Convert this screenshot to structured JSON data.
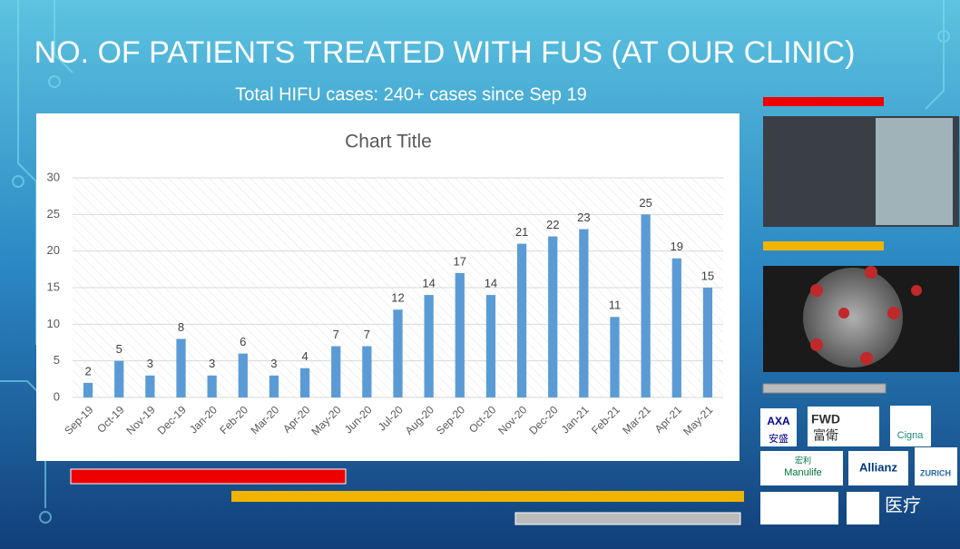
{
  "slide": {
    "title": "NO. OF PATIENTS TREATED WITH FUS (AT OUR CLINIC)",
    "subtitle": "Total HIFU cases: 240+ cases since Sep 19",
    "logos": [
      "AXA",
      "安盛",
      "FWD",
      "富衛",
      "Cigna",
      "宏利",
      "Manulife",
      "Allianz",
      "ZURICH"
    ],
    "watermark": "医疗"
  },
  "chart_data": {
    "type": "bar",
    "title": "Chart Title",
    "categories": [
      "Sep-19",
      "Oct-19",
      "Nov-19",
      "Dec-19",
      "Jan-20",
      "Feb-20",
      "Mar-20",
      "Apr-20",
      "May-20",
      "Jun-20",
      "Jul-20",
      "Aug-20",
      "Sep-20",
      "Oct-20",
      "Nov-20",
      "Dec-20",
      "Jan-21",
      "Feb-21",
      "Mar-21",
      "Apr-21",
      "May-21"
    ],
    "values": [
      2,
      5,
      3,
      8,
      3,
      6,
      3,
      4,
      7,
      7,
      12,
      14,
      17,
      14,
      21,
      22,
      23,
      11,
      25,
      19,
      15
    ],
    "color": "#5b9bd5",
    "ylim": [
      0,
      30
    ],
    "yticks": [
      0,
      5,
      10,
      15,
      20,
      25,
      30
    ],
    "grid": true
  }
}
